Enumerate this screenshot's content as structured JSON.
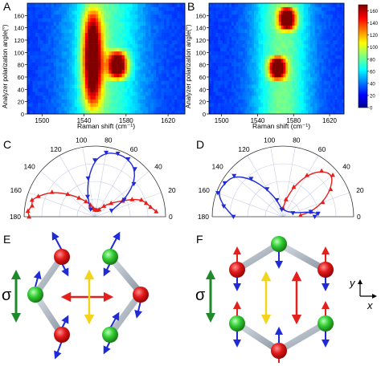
{
  "panels": {
    "a": "A",
    "b": "B",
    "c": "C",
    "d": "D",
    "e": "E",
    "f": "F"
  },
  "heatmap_common": {
    "ylabel": "Analyzer polarization angle(°)",
    "xlabel": "Raman shift (cm⁻¹)",
    "xticks": [
      "1500",
      "1540",
      "1580",
      "1620"
    ],
    "yticks": [
      "0",
      "20",
      "40",
      "60",
      "80",
      "100",
      "120",
      "140",
      "160"
    ]
  },
  "colorbar": {
    "ticks": [
      "0",
      "20",
      "40",
      "60",
      "80",
      "100",
      "120",
      "140",
      "160"
    ]
  },
  "polar_common": {
    "angle_labels": [
      "0",
      "20",
      "40",
      "60",
      "80",
      "100",
      "120",
      "140",
      "160",
      "180"
    ]
  },
  "symbols": {
    "sigma_e": "σ",
    "sigma_f": "σ",
    "axis_y": "y",
    "axis_x": "x"
  },
  "colors": {
    "red": "#e3201b",
    "blue": "#1f2bd6",
    "yellow": "#f2d51a",
    "green_arrow": "#1e8a2a",
    "atom_red": "#e21a1a",
    "atom_green": "#33cc33",
    "bond": "#b7c1cc"
  },
  "chart_data": [
    {
      "panel": "A",
      "type": "heatmap",
      "title": "",
      "xlabel": "Raman shift (cm⁻¹)",
      "ylabel": "Analyzer polarization angle(°)",
      "xlim": [
        1486,
        1636
      ],
      "ylim": [
        0,
        180
      ],
      "grid": false,
      "peaks": [
        {
          "angles": [
            0,
            10,
            20,
            30,
            40,
            150,
            160,
            170,
            180
          ],
          "shift_cm-1": 1548,
          "relative_intensity": "high"
        },
        {
          "angles": [
            60,
            70,
            80,
            90,
            100
          ],
          "shift_cm-1": 1572,
          "relative_intensity": "high"
        }
      ]
    },
    {
      "panel": "B",
      "type": "heatmap",
      "title": "",
      "xlabel": "Raman shift (cm⁻¹)",
      "ylabel": "Analyzer polarization angle(°)",
      "xlim": [
        1486,
        1636
      ],
      "ylim": [
        0,
        180
      ],
      "grid": false,
      "colorbar_range": [
        0,
        170
      ],
      "peaks": [
        {
          "angles": [
            140,
            150,
            160,
            170
          ],
          "shift_cm-1": 1573,
          "relative_intensity": "high"
        },
        {
          "angles": [
            60,
            70,
            80,
            90
          ],
          "shift_cm-1": 1562,
          "relative_intensity": "high"
        }
      ]
    },
    {
      "panel": "C",
      "type": "scatter",
      "coordinate": "polar",
      "angle_range_deg": [
        0,
        180
      ],
      "grid": true,
      "series": [
        {
          "color": "#e3201b",
          "marker": "triangle-up",
          "angles_deg": [
            5,
            10,
            15,
            20,
            25,
            30,
            40,
            50,
            60,
            70,
            80,
            90,
            100,
            110,
            120,
            130,
            140,
            150,
            160,
            165,
            170,
            175,
            180
          ],
          "r": [
            0.87,
            0.8,
            0.75,
            0.7,
            0.58,
            0.45,
            0.3,
            0.2,
            0.12,
            0.1,
            0.1,
            0.1,
            0.12,
            0.18,
            0.25,
            0.35,
            0.5,
            0.7,
            0.85,
            0.92,
            0.9,
            0.95,
            0.93
          ]
        },
        {
          "color": "#1f2bd6",
          "marker": "triangle-down",
          "angles_deg": [
            20,
            30,
            40,
            50,
            60,
            70,
            80,
            90,
            100,
            110,
            120
          ],
          "r": [
            0.25,
            0.48,
            0.72,
            0.88,
            0.94,
            0.95,
            0.92,
            0.8,
            0.55,
            0.3,
            0.12
          ]
        }
      ]
    },
    {
      "panel": "D",
      "type": "scatter",
      "coordinate": "polar",
      "angle_range_deg": [
        0,
        180
      ],
      "grid": true,
      "series": [
        {
          "color": "#e3201b",
          "marker": "triangle-up",
          "angles_deg": [
            5,
            10,
            20,
            30,
            40,
            50,
            60,
            70,
            80,
            90
          ],
          "r": [
            0.25,
            0.4,
            0.6,
            0.78,
            0.92,
            0.85,
            0.68,
            0.45,
            0.25,
            0.12
          ]
        },
        {
          "color": "#1f2bd6",
          "marker": "triangle-down",
          "angles_deg": [
            0,
            5,
            10,
            20,
            100,
            110,
            120,
            130,
            140,
            150,
            160,
            170,
            180
          ],
          "r": [
            0.45,
            0.5,
            0.4,
            0.15,
            0.1,
            0.25,
            0.45,
            0.7,
            0.9,
            0.95,
            0.98,
            0.85,
            0.7
          ]
        }
      ]
    }
  ]
}
